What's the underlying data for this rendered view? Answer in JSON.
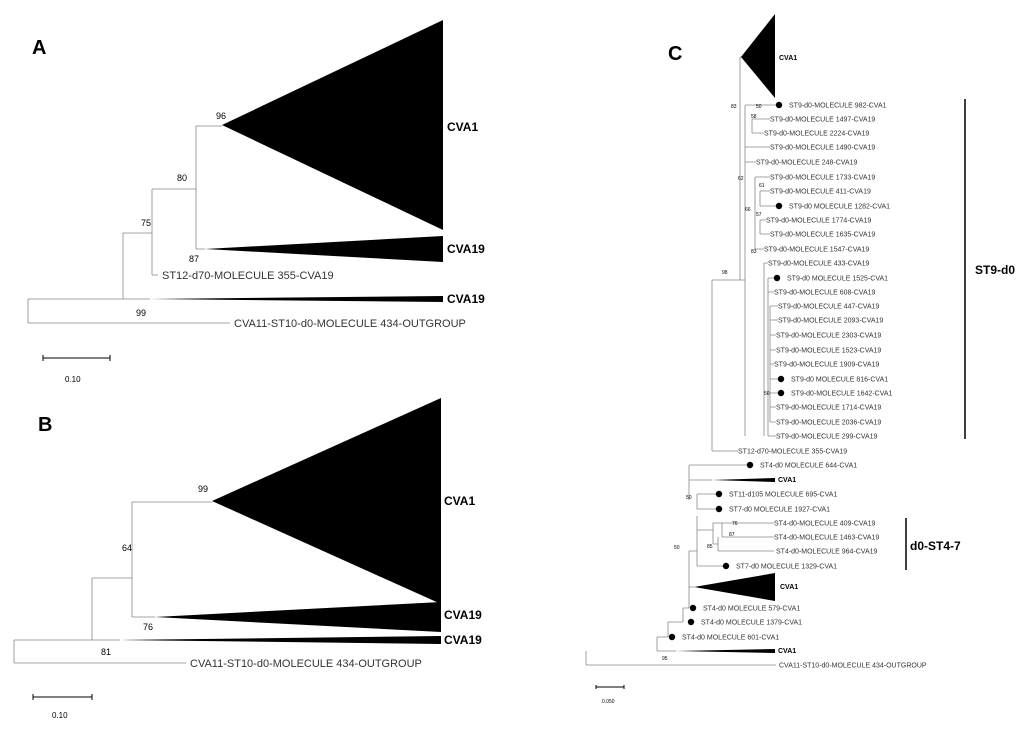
{
  "panels": {
    "a": {
      "letter": "A",
      "boot": [
        "96",
        "80",
        "75",
        "87",
        "99"
      ],
      "clades": [
        "CVA1",
        "CVA19",
        "CVA19"
      ],
      "leaves": [
        "ST12-d70-MOLECULE 355-CVA19",
        "CVA11-ST10-d0-MOLECULE 434-OUTGROUP"
      ],
      "scale": "0.10"
    },
    "b": {
      "letter": "B",
      "boot": [
        "99",
        "64",
        "76",
        "81"
      ],
      "clades": [
        "CVA1",
        "CVA19",
        "CVA19"
      ],
      "leaves": [
        "CVA11-ST10-d0-MOLECULE 434-OUTGROUP"
      ],
      "scale": "0.10"
    },
    "c": {
      "letter": "C",
      "top_clade": "CVA1",
      "leaves": [
        {
          "label": "ST9-d0-MOLECULE 982-CVA1",
          "dot": true
        },
        {
          "label": "ST9-d0-MOLECULE 1497-CVA19",
          "dot": false
        },
        {
          "label": "ST9-d0-MOLECULE 2224-CVA19",
          "dot": false
        },
        {
          "label": "ST9-d0-MOLECULE 1490-CVA19",
          "dot": false
        },
        {
          "label": "ST9-d0-MOLECULE 248-CVA19",
          "dot": false
        },
        {
          "label": "ST9-d0-MOLECULE 1733-CVA19",
          "dot": false
        },
        {
          "label": "ST9-d0-MOLECULE 411-CVA19",
          "dot": false
        },
        {
          "label": "ST9-d0 MOLECULE 1282-CVA1",
          "dot": true
        },
        {
          "label": "ST9-d0-MOLECULE 1774-CVA19",
          "dot": false
        },
        {
          "label": "ST9-d0-MOLECULE 1635-CVA19",
          "dot": false
        },
        {
          "label": "ST9-d0-MOLECULE 1547-CVA19",
          "dot": false
        },
        {
          "label": "ST9-d0-MOLECULE 433-CVA19",
          "dot": false
        },
        {
          "label": "ST9-d0 MOLECULE 1525-CVA1",
          "dot": true
        },
        {
          "label": "ST9-d0-MOLECULE 608-CVA19",
          "dot": false
        },
        {
          "label": "ST9-d0-MOLECULE 447-CVA19",
          "dot": false
        },
        {
          "label": "ST9-d0-MOLECULE 2093-CVA19",
          "dot": false
        },
        {
          "label": "ST9-d0-MOLECULE 2303-CVA19",
          "dot": false
        },
        {
          "label": "ST9-d0-MOLECULE 1523-CVA19",
          "dot": false
        },
        {
          "label": "ST9-d0-MOLECULE 1909-CVA19",
          "dot": false
        },
        {
          "label": "ST9-d0 MOLECULE 816-CVA1",
          "dot": true
        },
        {
          "label": "ST9-d0-MOLECULE 1642-CVA1",
          "dot": true
        },
        {
          "label": "ST9-d0-MOLECULE 1714-CVA19",
          "dot": false
        },
        {
          "label": "ST9-d0-MOLECULE 2036-CVA19",
          "dot": false
        },
        {
          "label": "ST9-d0-MOLECULE 299-CVA19",
          "dot": false
        },
        {
          "label": "ST12-d70-MOLECULE 355-CVA19",
          "dot": false
        },
        {
          "label": "ST4-d0 MOLECULE 644-CVA1",
          "dot": true
        },
        {
          "label": "CVA1",
          "dot": false,
          "bold": true
        },
        {
          "label": "ST11-d105 MOLECULE 695-CVA1",
          "dot": true
        },
        {
          "label": "ST7-d0 MOLECULE 1927-CVA1",
          "dot": true
        },
        {
          "label": "ST4-d0-MOLECULE 409-CVA19",
          "dot": false
        },
        {
          "label": "ST4-d0-MOLECULE 1463-CVA19",
          "dot": false
        },
        {
          "label": "ST4-d0-MOLECULE 964-CVA19",
          "dot": false
        },
        {
          "label": "ST7-d0 MOLECULE 1329-CVA1",
          "dot": true
        },
        {
          "label": "CVA1",
          "dot": false,
          "bold": true
        },
        {
          "label": "ST4-d0 MOLECULE 579-CVA1",
          "dot": true
        },
        {
          "label": "ST4-d0 MOLECULE 1379-CVA1",
          "dot": true
        },
        {
          "label": "ST4-d0 MOLECULE 601-CVA1",
          "dot": true
        },
        {
          "label": "CVA1",
          "dot": false,
          "bold": true
        },
        {
          "label": "CVA11-ST10-d0-MOLECULE 434-OUTGROUP",
          "dot": false
        }
      ],
      "boot": [
        "83",
        "50",
        "58",
        "62",
        "61",
        "66",
        "57",
        "83",
        "98",
        "50",
        "50",
        "76",
        "87",
        "85",
        "50",
        "95"
      ],
      "brackets": [
        "ST9-d0",
        "d0-ST4-7"
      ],
      "scale": "0.050"
    }
  }
}
